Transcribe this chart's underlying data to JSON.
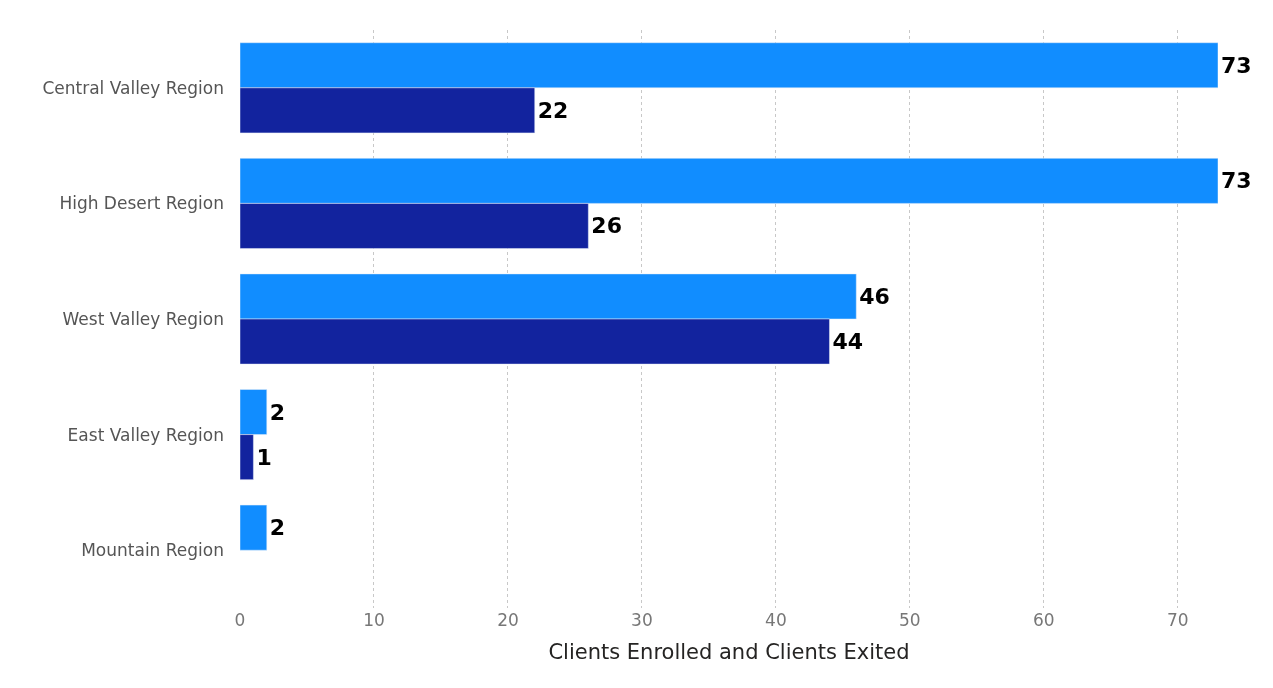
{
  "chart_data": {
    "type": "bar",
    "orientation": "horizontal",
    "xlabel": "Clients Enrolled and Clients Exited",
    "categories": [
      "Central Valley Region",
      "High Desert Region",
      "West Valley Region",
      "East Valley Region",
      "Mountain Region"
    ],
    "series": [
      {
        "color": "#118dff",
        "values": [
          73,
          73,
          46,
          2,
          2
        ]
      },
      {
        "color": "#12239e",
        "values": [
          22,
          26,
          44,
          1,
          null
        ]
      }
    ],
    "xlim": [
      0,
      73
    ],
    "xticks": [
      0,
      10,
      20,
      30,
      40,
      50,
      60,
      70
    ],
    "grid": "x",
    "legend": false,
    "data_labels": true
  }
}
